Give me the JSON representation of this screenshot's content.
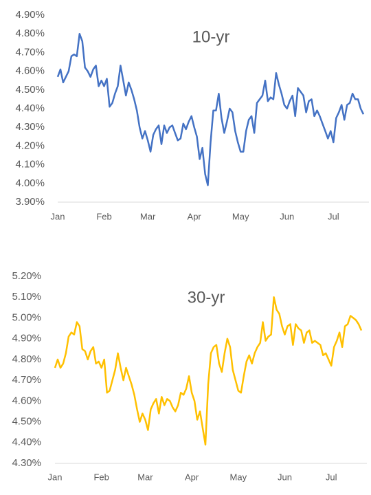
{
  "chart_data": [
    {
      "type": "line",
      "title": "10-yr",
      "color": "#4472c4",
      "categories": [
        "Jan",
        null,
        null,
        null,
        null,
        null,
        null,
        null,
        null,
        null,
        null,
        null,
        null,
        null,
        null,
        null,
        null,
        "Feb",
        null,
        null,
        null,
        null,
        null,
        null,
        null,
        null,
        null,
        null,
        null,
        null,
        null,
        null,
        null,
        "Mar",
        null,
        null,
        null,
        null,
        null,
        null,
        null,
        null,
        null,
        null,
        null,
        null,
        null,
        null,
        null,
        null,
        "Apr",
        null,
        null,
        null,
        null,
        null,
        null,
        null,
        null,
        null,
        null,
        null,
        null,
        null,
        null,
        null,
        null,
        "May",
        null,
        null,
        null,
        null,
        null,
        null,
        null,
        null,
        null,
        null,
        null,
        null,
        null,
        null,
        null,
        null,
        "Jun",
        null,
        null,
        null,
        null,
        null,
        null,
        null,
        null,
        null,
        null,
        null,
        null,
        null,
        null,
        null,
        null,
        "Jul",
        null,
        null,
        null,
        null,
        null,
        null,
        null,
        null,
        null,
        null,
        null
      ],
      "values": [
        4.57,
        4.61,
        4.54,
        4.57,
        4.6,
        4.68,
        4.69,
        4.68,
        4.8,
        4.76,
        4.62,
        4.6,
        4.57,
        4.61,
        4.63,
        4.52,
        4.55,
        4.52,
        4.56,
        4.41,
        4.43,
        4.48,
        4.52,
        4.63,
        4.55,
        4.47,
        4.54,
        4.5,
        4.45,
        4.39,
        4.3,
        4.24,
        4.28,
        4.23,
        4.17,
        4.26,
        4.29,
        4.31,
        4.21,
        4.31,
        4.27,
        4.3,
        4.31,
        4.27,
        4.23,
        4.24,
        4.32,
        4.29,
        4.33,
        4.36,
        4.3,
        4.25,
        4.13,
        4.19,
        4.05,
        3.99,
        4.22,
        4.39,
        4.39,
        4.48,
        4.35,
        4.27,
        4.33,
        4.4,
        4.38,
        4.28,
        4.22,
        4.17,
        4.17,
        4.28,
        4.34,
        4.36,
        4.27,
        4.43,
        4.45,
        4.47,
        4.55,
        4.44,
        4.46,
        4.45,
        4.59,
        4.53,
        4.48,
        4.42,
        4.4,
        4.44,
        4.47,
        4.36,
        4.51,
        4.49,
        4.47,
        4.38,
        4.44,
        4.45,
        4.36,
        4.39,
        4.36,
        4.32,
        4.28,
        4.24,
        4.28,
        4.22,
        4.35,
        4.38,
        4.42,
        4.34,
        4.42,
        4.43,
        4.48,
        4.45,
        4.45,
        4.4,
        4.37
      ],
      "ylim": [
        3.9,
        4.9
      ],
      "yticks": [
        {
          "value": 3.9,
          "label": "3.90%"
        },
        {
          "value": 4.0,
          "label": "4.00%"
        },
        {
          "value": 4.1,
          "label": "4.10%"
        },
        {
          "value": 4.2,
          "label": "4.20%"
        },
        {
          "value": 4.3,
          "label": "4.30%"
        },
        {
          "value": 4.4,
          "label": "4.40%"
        },
        {
          "value": 4.5,
          "label": "4.50%"
        },
        {
          "value": 4.6,
          "label": "4.60%"
        },
        {
          "value": 4.7,
          "label": "4.70%"
        },
        {
          "value": 4.8,
          "label": "4.80%"
        },
        {
          "value": 4.9,
          "label": "4.90%"
        }
      ]
    },
    {
      "type": "line",
      "title": "30-yr",
      "color": "#ffc000",
      "categories": [
        "Jan",
        null,
        null,
        null,
        null,
        null,
        null,
        null,
        null,
        null,
        null,
        null,
        null,
        null,
        null,
        null,
        null,
        "Feb",
        null,
        null,
        null,
        null,
        null,
        null,
        null,
        null,
        null,
        null,
        null,
        null,
        null,
        null,
        null,
        "Mar",
        null,
        null,
        null,
        null,
        null,
        null,
        null,
        null,
        null,
        null,
        null,
        null,
        null,
        null,
        null,
        null,
        "Apr",
        null,
        null,
        null,
        null,
        null,
        null,
        null,
        null,
        null,
        null,
        null,
        null,
        null,
        null,
        null,
        null,
        "May",
        null,
        null,
        null,
        null,
        null,
        null,
        null,
        null,
        null,
        null,
        null,
        null,
        null,
        null,
        null,
        null,
        "Jun",
        null,
        null,
        null,
        null,
        null,
        null,
        null,
        null,
        null,
        null,
        null,
        null,
        null,
        null,
        null,
        null,
        "Jul",
        null,
        null,
        null,
        null,
        null,
        null,
        null,
        null,
        null,
        null,
        null
      ],
      "values": [
        4.76,
        4.8,
        4.76,
        4.78,
        4.83,
        4.91,
        4.93,
        4.92,
        4.98,
        4.96,
        4.85,
        4.84,
        4.8,
        4.84,
        4.86,
        4.78,
        4.79,
        4.76,
        4.8,
        4.64,
        4.65,
        4.7,
        4.75,
        4.83,
        4.76,
        4.7,
        4.76,
        4.72,
        4.68,
        4.63,
        4.56,
        4.5,
        4.54,
        4.51,
        4.46,
        4.56,
        4.59,
        4.61,
        4.54,
        4.62,
        4.58,
        4.61,
        4.6,
        4.57,
        4.55,
        4.58,
        4.64,
        4.63,
        4.66,
        4.72,
        4.64,
        4.6,
        4.51,
        4.55,
        4.47,
        4.39,
        4.68,
        4.83,
        4.86,
        4.87,
        4.78,
        4.74,
        4.83,
        4.9,
        4.86,
        4.75,
        4.7,
        4.65,
        4.64,
        4.72,
        4.79,
        4.82,
        4.78,
        4.83,
        4.86,
        4.88,
        4.98,
        4.89,
        4.91,
        4.92,
        5.1,
        5.04,
        5.02,
        4.96,
        4.92,
        4.96,
        4.97,
        4.87,
        4.97,
        4.95,
        4.94,
        4.88,
        4.93,
        4.94,
        4.88,
        4.89,
        4.88,
        4.87,
        4.82,
        4.83,
        4.8,
        4.77,
        4.86,
        4.89,
        4.93,
        4.86,
        4.96,
        4.97,
        5.01,
        5.0,
        4.99,
        4.97,
        4.94
      ],
      "ylim": [
        4.3,
        5.2
      ],
      "yticks": [
        {
          "value": 4.3,
          "label": "4.30%"
        },
        {
          "value": 4.4,
          "label": "4.40%"
        },
        {
          "value": 4.5,
          "label": "4.50%"
        },
        {
          "value": 4.6,
          "label": "4.60%"
        },
        {
          "value": 4.7,
          "label": "4.70%"
        },
        {
          "value": 4.8,
          "label": "4.80%"
        },
        {
          "value": 4.9,
          "label": "4.90%"
        },
        {
          "value": 5.0,
          "label": "5.00%"
        },
        {
          "value": 5.1,
          "label": "5.10%"
        },
        {
          "value": 5.2,
          "label": "5.20%"
        }
      ]
    }
  ]
}
